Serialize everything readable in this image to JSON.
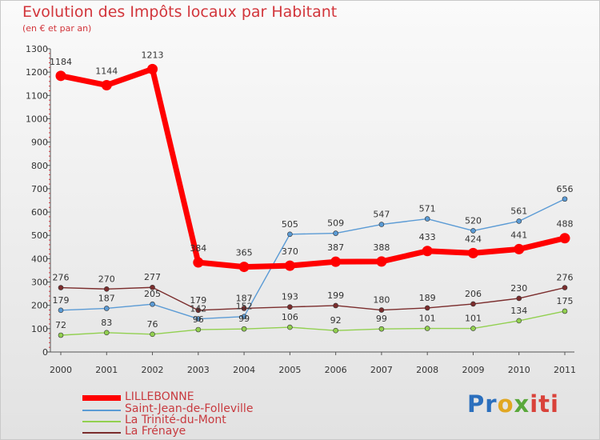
{
  "chart_data": {
    "type": "line",
    "title": "Evolution des Impôts locaux par Habitant",
    "subtitle": "(en € et par an)",
    "x": [
      "2000",
      "2001",
      "2002",
      "2003",
      "2004",
      "2005",
      "2006",
      "2007",
      "2008",
      "2009",
      "2010",
      "2011"
    ],
    "ylim": [
      0,
      1300
    ],
    "yticks": [
      0,
      100,
      200,
      300,
      400,
      500,
      600,
      700,
      800,
      900,
      1000,
      1100,
      1200,
      1300
    ],
    "grid": false,
    "legend_position": "bottom-left",
    "series": [
      {
        "name": "LILLEBONNE",
        "color": "#ff0000",
        "values": [
          1184,
          1144,
          1213,
          384,
          365,
          370,
          387,
          388,
          433,
          424,
          441,
          488
        ]
      },
      {
        "name": "Saint-Jean-de-Folleville",
        "color": "#5b9bd5",
        "values": [
          179,
          187,
          205,
          142,
          152,
          505,
          509,
          547,
          571,
          520,
          561,
          656
        ]
      },
      {
        "name": "La Trinité-du-Mont",
        "color": "#92d050",
        "values": [
          72,
          83,
          76,
          96,
          99,
          106,
          92,
          99,
          101,
          101,
          134,
          175
        ]
      },
      {
        "name": "La Frénaye",
        "color": "#7b2d2d",
        "values": [
          276,
          270,
          277,
          179,
          187,
          193,
          199,
          180,
          189,
          206,
          230,
          276
        ]
      }
    ]
  },
  "logo": {
    "p1": "Pr",
    "p2": "o",
    "p3": "x",
    "p4": "iti"
  }
}
